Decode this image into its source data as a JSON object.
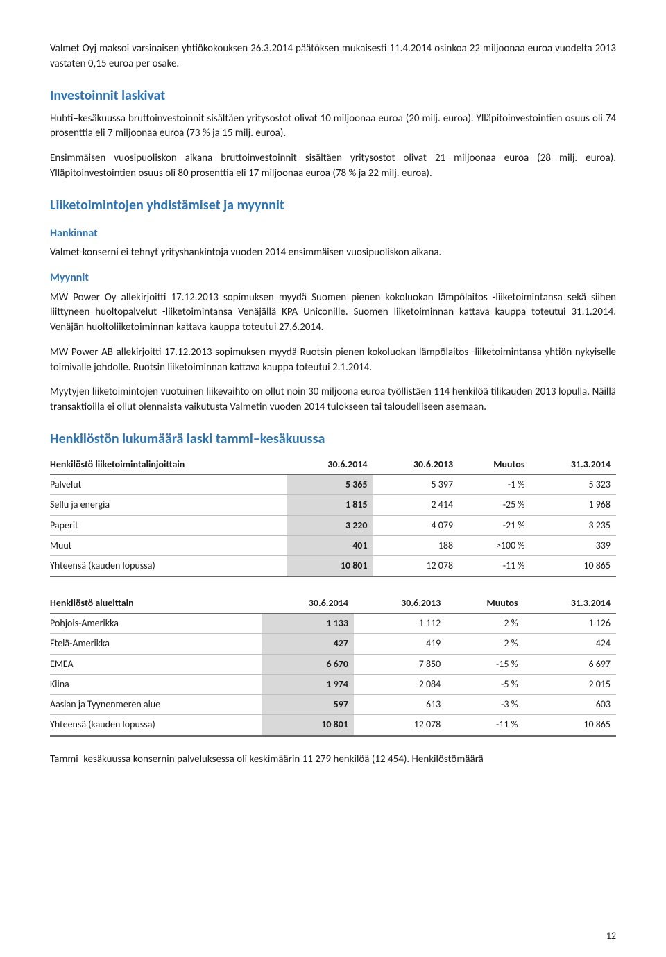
{
  "p1": "Valmet Oyj maksoi varsinaisen yhtiökokouksen 26.3.2014 päätöksen mukaisesti 11.4.2014 osinkoa 22 miljoonaa euroa vuodelta 2013 vastaten 0,15 euroa per osake.",
  "h_inv": "Investoinnit laskivat",
  "p2": "Huhti–kesäkuussa bruttoinvestoinnit sisältäen yritysostot olivat 10 miljoonaa euroa (20 milj. euroa). Ylläpitoinvestointien osuus oli 74 prosenttia eli 7 miljoonaa euroa (73 % ja 15 milj. euroa).",
  "p3": "Ensimmäisen vuosipuoliskon aikana bruttoinvestoinnit sisältäen yritysostot olivat 21 miljoonaa euroa (28 milj. euroa). Ylläpitoinvestointien osuus oli 80 prosenttia eli 17 miljoonaa euroa (78 % ja 22 milj. euroa).",
  "h_liik": "Liiketoimintojen yhdistämiset ja myynnit",
  "h_hank": "Hankinnat",
  "p4": "Valmet-konserni ei tehnyt yrityshankintoja vuoden 2014 ensimmäisen vuosipuoliskon aikana.",
  "h_myyn": "Myynnit",
  "p5": "MW Power Oy allekirjoitti 17.12.2013 sopimuksen myydä Suomen pienen kokoluokan lämpölaitos -liiketoimintansa sekä siihen liittyneen huoltopalvelut -liiketoimintansa Venäjällä KPA Uniconille. Suomen liiketoiminnan kattava kauppa toteutui 31.1.2014. Venäjän huoltoliiketoiminnan kattava kauppa toteutui 27.6.2014.",
  "p6": "MW Power AB allekirjoitti 17.12.2013 sopimuksen myydä Ruotsin pienen kokoluokan lämpölaitos -liiketoimintansa yhtiön nykyiselle toimivalle johdolle. Ruotsin liiketoiminnan kattava kauppa toteutui 2.1.2014.",
  "p7": "Myytyjen liiketoimintojen vuotuinen liikevaihto on ollut noin 30 miljoona euroa työllistäen 114 henkilöä tilikauden 2013 lopulla. Näillä transaktioilla ei ollut olennaista vaikutusta Valmetin vuoden 2014 tulokseen tai taloudelliseen asemaan.",
  "h_henk": "Henkilöstön lukumäärä laski tammi–kesäkuussa",
  "t1": {
    "head": [
      "Henkilöstö liiketoimintalinjoittain",
      "30.6.2014",
      "30.6.2013",
      "Muutos",
      "31.3.2014"
    ],
    "rows": [
      [
        "Palvelut",
        "5 365",
        "5 397",
        "-1 %",
        "5 323"
      ],
      [
        "Sellu ja energia",
        "1 815",
        "2 414",
        "-25 %",
        "1 968"
      ],
      [
        "Paperit",
        "3 220",
        "4 079",
        "-21 %",
        "3 235"
      ],
      [
        "Muut",
        "401",
        "188",
        ">100 %",
        "339"
      ]
    ],
    "total": [
      "Yhteensä (kauden lopussa)",
      "10 801",
      "12 078",
      "-11 %",
      "10 865"
    ]
  },
  "t2": {
    "head": [
      "Henkilöstö alueittain",
      "30.6.2014",
      "30.6.2013",
      "Muutos",
      "31.3.2014"
    ],
    "rows": [
      [
        "Pohjois-Amerikka",
        "1 133",
        "1 112",
        "2 %",
        "1 126"
      ],
      [
        "Etelä-Amerikka",
        "427",
        "419",
        "2 %",
        "424"
      ],
      [
        "EMEA",
        "6 670",
        "7 850",
        "-15 %",
        "6 697"
      ],
      [
        "Kiina",
        "1 974",
        "2 084",
        "-5 %",
        "2 015"
      ],
      [
        "Aasian ja Tyynenmeren alue",
        "597",
        "613",
        "-3 %",
        "603"
      ]
    ],
    "total": [
      "Yhteensä (kauden lopussa)",
      "10 801",
      "12 078",
      "-11 %",
      "10 865"
    ]
  },
  "p8": "Tammi–kesäkuussa konsernin palveluksessa oli keskimäärin 11 279 henkilöä (12 454). Henkilöstömäärä",
  "page": "12"
}
